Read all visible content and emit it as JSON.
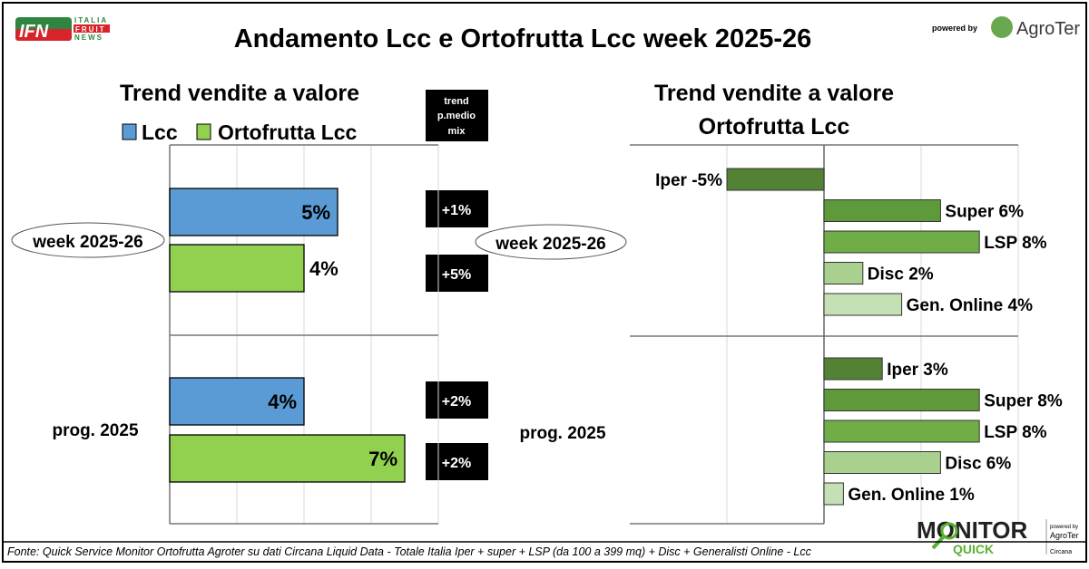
{
  "header": {
    "title": "Andamento Lcc e Ortofrutta Lcc week 2025-26",
    "logo_left": "IFN ITALIA FRUIT NEWS",
    "powered_by": "powered by",
    "logo_right": "AgroTer think fresh"
  },
  "footer": {
    "source": "Fonte: Quick Service Monitor Ortofrutta Agroter su dati Circana Liquid Data - Totale Italia Iper + super + LSP (da 100 a 399 mq) + Disc + Generalisti Online - Lcc",
    "logo": "MONITOR QUICK powered by AgroTer with Circana"
  },
  "periods": [
    "week 2025-26",
    "prog. 2025"
  ],
  "trend_header": [
    "trend",
    "p.medio",
    "mix"
  ],
  "trend_values": [
    "+1%",
    "+5%",
    "+2%",
    "+2%"
  ],
  "chart_data": [
    {
      "type": "bar",
      "orientation": "horizontal",
      "title": "Trend vendite a valore",
      "categories": [
        "week 2025-26",
        "prog. 2025"
      ],
      "xlim": [
        0,
        8
      ],
      "grid": true,
      "legend": "top",
      "series": [
        {
          "name": "Lcc",
          "color": "#5b9bd5",
          "values": [
            5,
            4
          ],
          "labels": [
            "5%",
            "4%"
          ]
        },
        {
          "name": "Ortofrutta Lcc",
          "color": "#92d050",
          "values": [
            4,
            7
          ],
          "labels": [
            "4%",
            "7%"
          ]
        }
      ]
    },
    {
      "type": "bar",
      "orientation": "horizontal",
      "title": "Trend vendite a valore Ortofrutta Lcc",
      "title_lines": [
        "Trend vendite a valore",
        "Ortofrutta Lcc"
      ],
      "categories": [
        "week 2025-26",
        "prog. 2025"
      ],
      "xlim": [
        -10,
        10
      ],
      "grid": true,
      "channels": [
        {
          "name": "Iper",
          "color": "#548235",
          "values": [
            -5,
            3
          ],
          "labels": [
            "Iper -5%",
            "Iper 3%"
          ]
        },
        {
          "name": "Super",
          "color": "#5e9a3a",
          "values": [
            6,
            8
          ],
          "labels": [
            "Super 6%",
            "Super 8%"
          ]
        },
        {
          "name": "LSP",
          "color": "#70ad47",
          "values": [
            8,
            8
          ],
          "labels": [
            "LSP 8%",
            "LSP 8%"
          ]
        },
        {
          "name": "Disc",
          "color": "#a9d08e",
          "values": [
            2,
            6
          ],
          "labels": [
            "Disc 2%",
            "Disc 6%"
          ]
        },
        {
          "name": "Gen. Online",
          "color": "#c5e0b4",
          "values": [
            4,
            1
          ],
          "labels": [
            "Gen. Online 4%",
            "Gen. Online 1%"
          ]
        }
      ]
    }
  ]
}
